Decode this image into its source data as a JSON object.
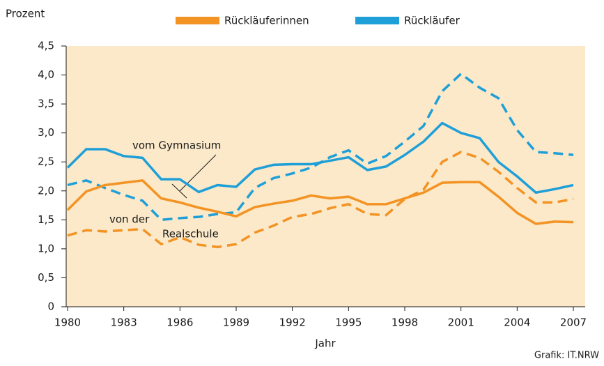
{
  "chart_data": {
    "type": "line",
    "y_label": "Prozent",
    "x_label": "Jahr",
    "source": "Grafik: IT.NRW",
    "legend": [
      {
        "label": "Rückläuferinnen",
        "color": "#f39324"
      },
      {
        "label": "Rückläufer",
        "color": "#1f9fd8"
      }
    ],
    "annotations": [
      "vom Gymnasium",
      "von der",
      "Realschule"
    ],
    "x": [
      1980,
      1981,
      1982,
      1983,
      1984,
      1985,
      1986,
      1987,
      1988,
      1989,
      1990,
      1991,
      1992,
      1993,
      1994,
      1995,
      1996,
      1997,
      1998,
      1999,
      2000,
      2001,
      2002,
      2003,
      2004,
      2005,
      2006,
      2007
    ],
    "series": [
      {
        "color": "#1f9fd8",
        "dashed": false,
        "values": [
          2.4,
          2.72,
          2.72,
          2.6,
          2.57,
          2.2,
          2.2,
          1.98,
          2.1,
          2.07,
          2.37,
          2.45,
          2.46,
          2.46,
          2.52,
          2.58,
          2.36,
          2.42,
          2.62,
          2.85,
          3.17,
          3.0,
          2.91,
          2.5,
          2.25,
          1.97,
          2.03,
          2.1
        ]
      },
      {
        "color": "#1f9fd8",
        "dashed": true,
        "values": [
          2.1,
          2.18,
          2.05,
          1.93,
          1.83,
          1.5,
          1.53,
          1.55,
          1.6,
          1.63,
          2.05,
          2.22,
          2.3,
          2.4,
          2.58,
          2.7,
          2.47,
          2.6,
          2.85,
          3.12,
          3.72,
          4.02,
          3.78,
          3.6,
          3.05,
          2.67,
          2.65,
          2.62
        ]
      },
      {
        "color": "#f39324",
        "dashed": false,
        "values": [
          1.67,
          1.99,
          2.1,
          2.14,
          2.18,
          1.87,
          1.8,
          1.71,
          1.64,
          1.56,
          1.72,
          1.78,
          1.83,
          1.92,
          1.87,
          1.9,
          1.77,
          1.77,
          1.87,
          1.97,
          2.14,
          2.15,
          2.15,
          1.9,
          1.62,
          1.43,
          1.47,
          1.46
        ]
      },
      {
        "color": "#f39324",
        "dashed": true,
        "values": [
          1.23,
          1.32,
          1.3,
          1.32,
          1.34,
          1.08,
          1.2,
          1.07,
          1.03,
          1.08,
          1.28,
          1.4,
          1.55,
          1.6,
          1.7,
          1.77,
          1.6,
          1.58,
          1.86,
          2.02,
          2.5,
          2.67,
          2.57,
          2.33,
          2.05,
          1.8,
          1.8,
          1.86
        ]
      }
    ],
    "xlim": [
      1980,
      2007
    ],
    "xticks": [
      1980,
      1983,
      1986,
      1989,
      1992,
      1995,
      1998,
      2001,
      2004,
      2007
    ],
    "ylim": [
      0,
      4.5
    ],
    "yticks": [
      0,
      {
        "value": 0.5,
        "label": "0,5"
      },
      {
        "value": 1,
        "label": "1,0"
      },
      {
        "value": 1.5,
        "label": "1,5"
      },
      {
        "value": 2,
        "label": "2,0"
      },
      {
        "value": 2.5,
        "label": "2,5"
      },
      {
        "value": 3,
        "label": "3,0"
      },
      {
        "value": 3.5,
        "label": "3,5"
      },
      {
        "value": 4,
        "label": "4,0"
      },
      {
        "value": 4.5,
        "label": "4,5"
      }
    ]
  }
}
